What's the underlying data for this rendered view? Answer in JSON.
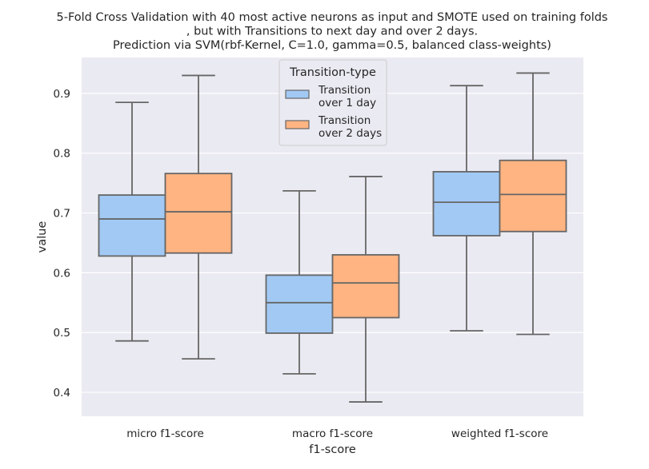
{
  "chart_data": {
    "type": "boxplot",
    "title_lines": [
      "5-Fold Cross Validation with 40 most active neurons as input and SMOTE used on training folds",
      ", but with Transitions to next day and over 2 days.",
      "Prediction via SVM(rbf-Kernel, C=1.0, gamma=0.5, balanced class-weights)"
    ],
    "xlabel": "f1-score",
    "ylabel": "value",
    "categories": [
      "micro f1-score",
      "macro f1-score",
      "weighted f1-score"
    ],
    "ylim": [
      0.36,
      0.96
    ],
    "yticks": [
      "0.4",
      "0.5",
      "0.6",
      "0.7",
      "0.8",
      "0.9"
    ],
    "grid": true,
    "legend": {
      "title": "Transition-type",
      "position": "upper-center",
      "entries": [
        {
          "lines": [
            "Transition",
            "over 1 day"
          ]
        },
        {
          "lines": [
            "Transition",
            "over 2 days"
          ]
        }
      ]
    },
    "series": [
      {
        "name": "Transition over 1 day",
        "color": "#a1c9f4",
        "boxes": [
          {
            "min": 0.486,
            "q1": 0.628,
            "median": 0.69,
            "q3": 0.73,
            "max": 0.885
          },
          {
            "min": 0.431,
            "q1": 0.499,
            "median": 0.55,
            "q3": 0.596,
            "max": 0.737
          },
          {
            "min": 0.503,
            "q1": 0.662,
            "median": 0.718,
            "q3": 0.769,
            "max": 0.913
          }
        ]
      },
      {
        "name": "Transition over 2 days",
        "color": "#ffb482",
        "boxes": [
          {
            "min": 0.456,
            "q1": 0.633,
            "median": 0.702,
            "q3": 0.766,
            "max": 0.93
          },
          {
            "min": 0.384,
            "q1": 0.525,
            "median": 0.583,
            "q3": 0.63,
            "max": 0.761
          },
          {
            "min": 0.497,
            "q1": 0.669,
            "median": 0.731,
            "q3": 0.788,
            "max": 0.934
          }
        ]
      }
    ]
  }
}
